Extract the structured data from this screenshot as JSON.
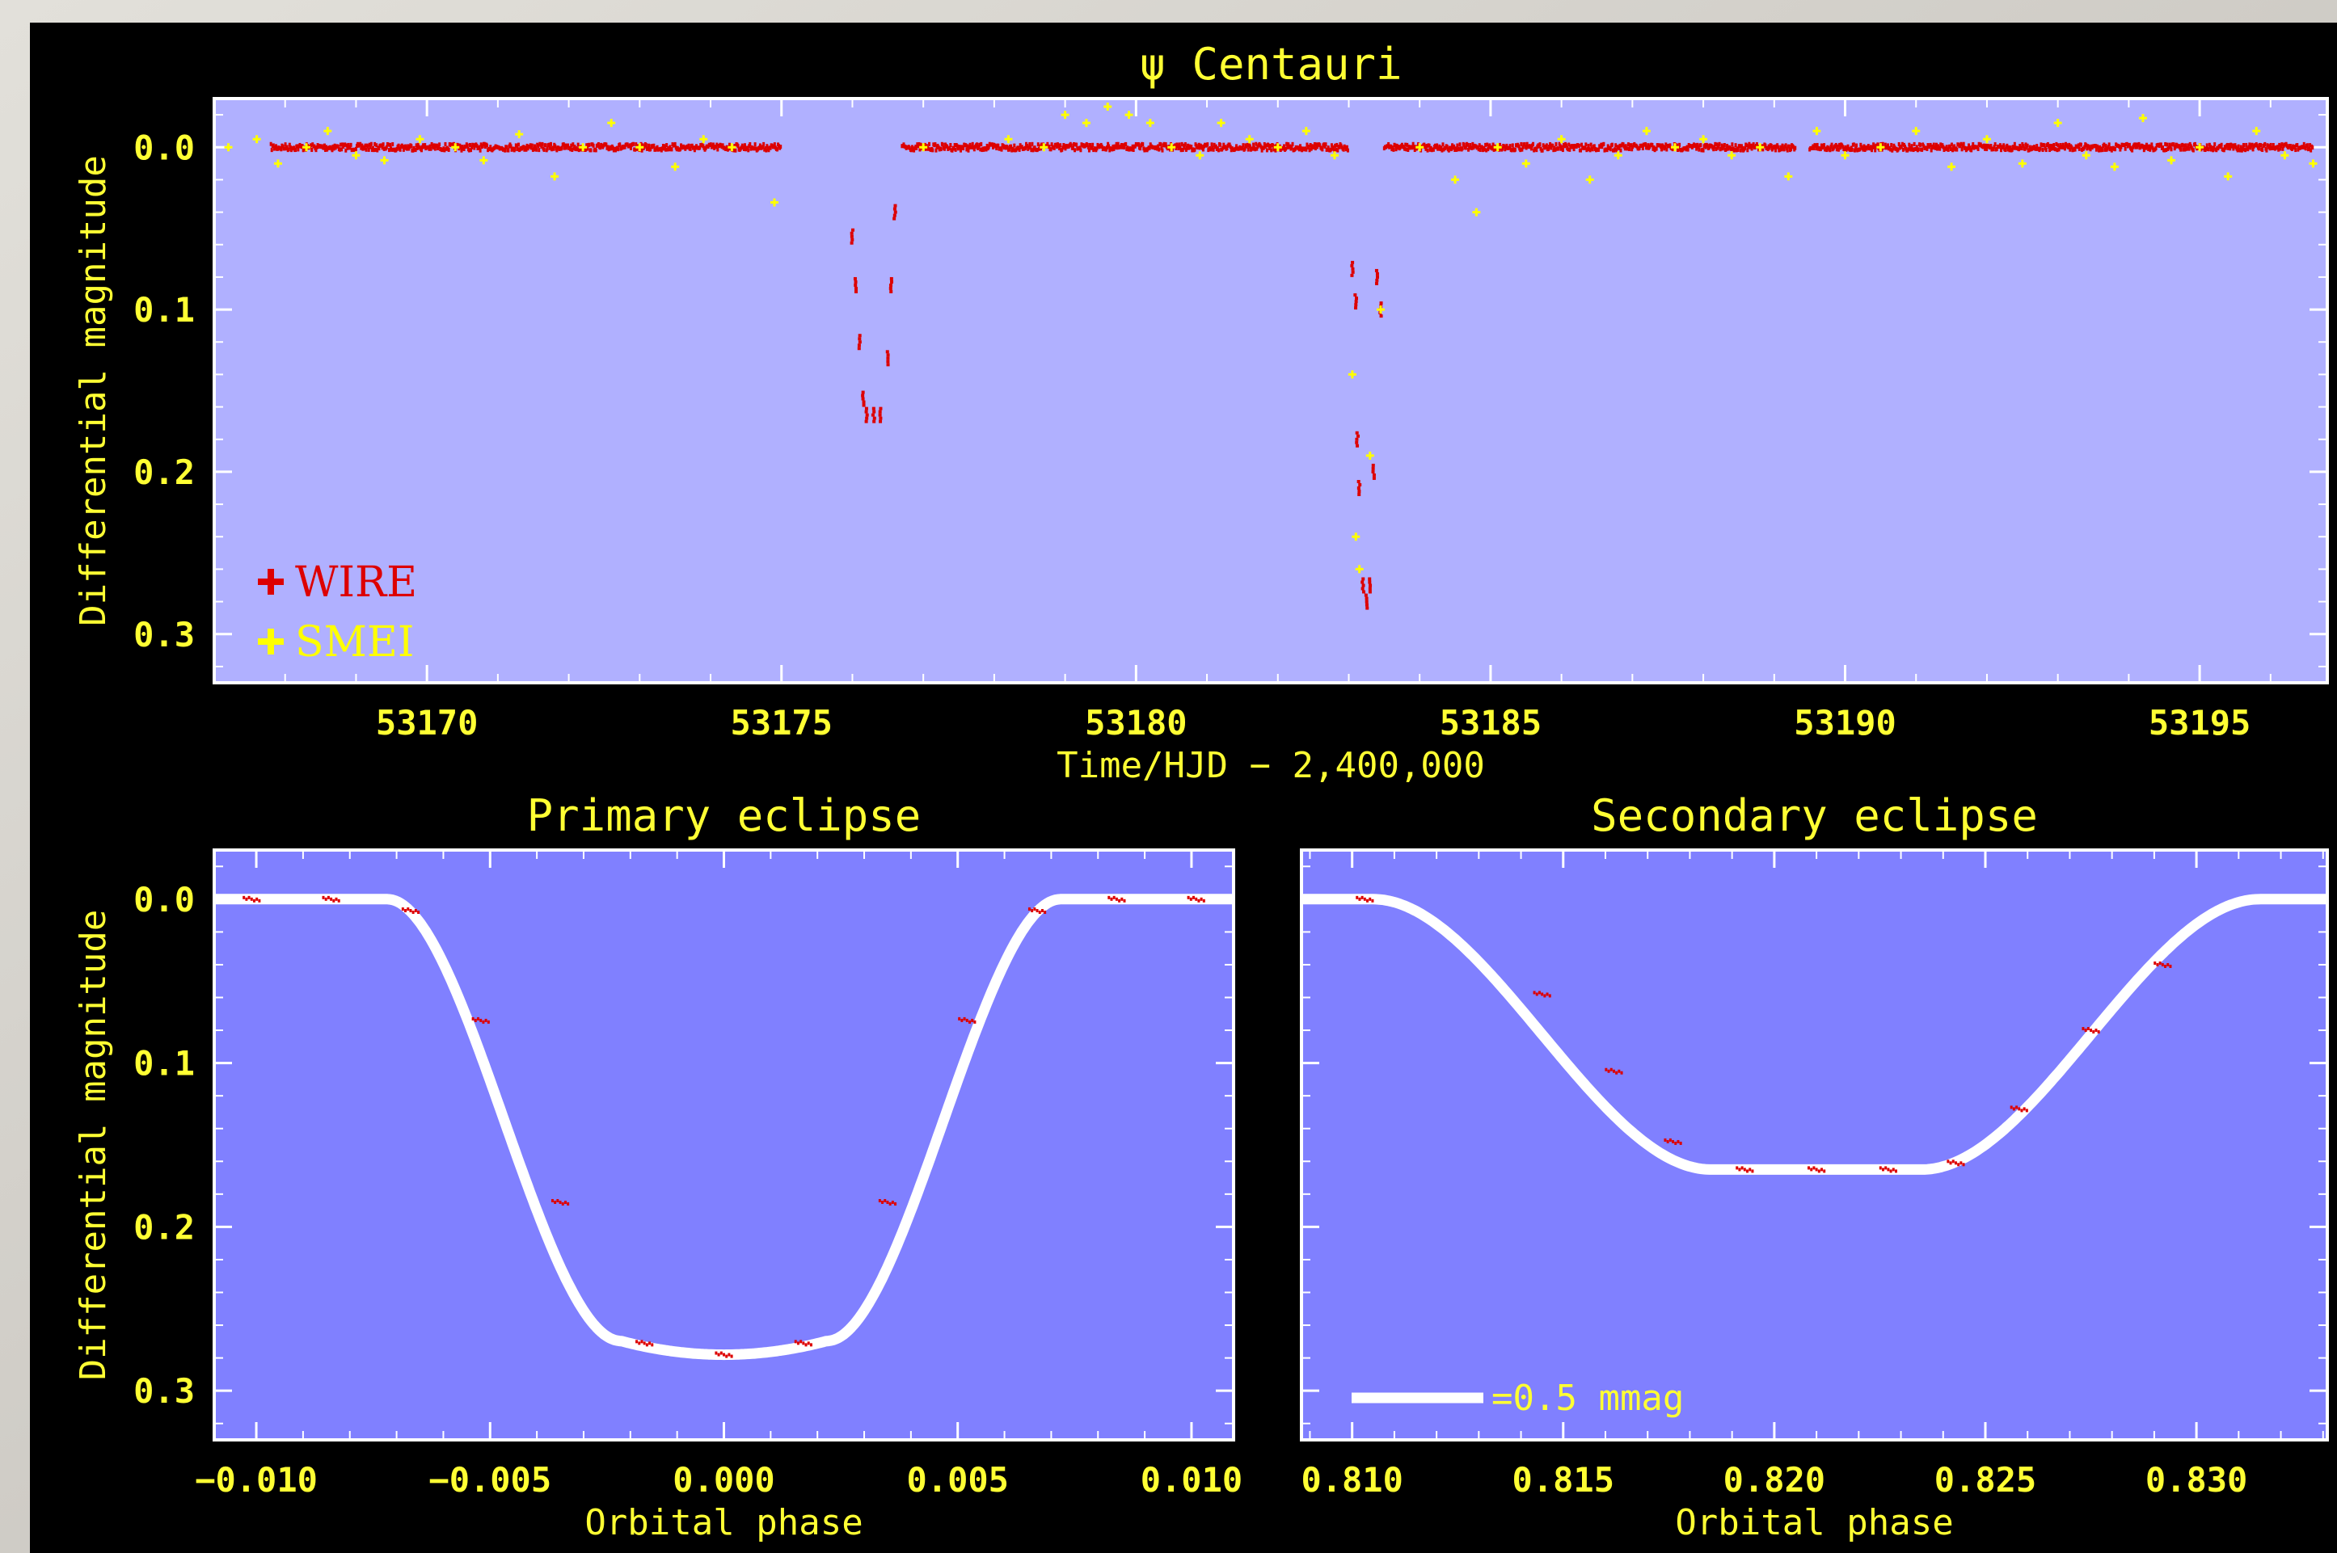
{
  "colors": {
    "figure_bg": "#000000",
    "top_panel_bg": "#b0b0ff",
    "bottom_panel_bg": "#8080ff",
    "text": "#ffff33",
    "wire": "#dd0000",
    "smei": "#ffff00",
    "model": "#ffffff"
  },
  "chart_data": [
    {
      "type": "scatter",
      "title": "ψ Centauri",
      "xlabel": "Time/HJD − 2,400,000",
      "ylabel": "Differential magnitude",
      "xlim": [
        53167.0,
        53196.8
      ],
      "ylim": [
        0.33,
        -0.03
      ],
      "y_inverted": true,
      "xticks": [
        53170,
        53175,
        53180,
        53185,
        53190,
        53195
      ],
      "xtick_labels": [
        "53170",
        "53175",
        "53180",
        "53185",
        "53190",
        "53195"
      ],
      "yticks": [
        0.0,
        0.1,
        0.2,
        0.3
      ],
      "ytick_labels": [
        "0.0",
        "0.1",
        "0.2",
        "0.3"
      ],
      "legend_position": "bottom-left",
      "legend": [
        {
          "symbol": "+",
          "label": "WIRE",
          "color": "#dd0000"
        },
        {
          "symbol": "+",
          "label": "SMEI",
          "color": "#ffff00"
        }
      ],
      "series": [
        {
          "name": "WIRE",
          "color": "#dd0000",
          "baseline_segments": [
            [
              53167.8,
              53175.0
            ],
            [
              53176.7,
              53183.0
            ],
            [
              53183.5,
              53189.3
            ],
            [
              53189.5,
              53196.6
            ]
          ],
          "baseline_mag": 0.0,
          "eclipse_points": [
            [
              53176.0,
              0.055
            ],
            [
              53176.05,
              0.085
            ],
            [
              53176.1,
              0.12
            ],
            [
              53176.15,
              0.155
            ],
            [
              53176.2,
              0.165
            ],
            [
              53176.3,
              0.165
            ],
            [
              53176.4,
              0.165
            ],
            [
              53176.5,
              0.13
            ],
            [
              53176.55,
              0.085
            ],
            [
              53176.6,
              0.04
            ],
            [
              53183.05,
              0.075
            ],
            [
              53183.1,
              0.095
            ],
            [
              53183.12,
              0.18
            ],
            [
              53183.15,
              0.21
            ],
            [
              53183.2,
              0.27
            ],
            [
              53183.25,
              0.28
            ],
            [
              53183.3,
              0.27
            ],
            [
              53183.35,
              0.2
            ],
            [
              53183.4,
              0.08
            ],
            [
              53183.45,
              0.1
            ]
          ]
        },
        {
          "name": "SMEI",
          "color": "#ffff00",
          "points": [
            [
              53167.2,
              0.0
            ],
            [
              53167.6,
              -0.005
            ],
            [
              53167.9,
              0.01
            ],
            [
              53168.3,
              0.0
            ],
            [
              53168.6,
              -0.01
            ],
            [
              53169.0,
              0.005
            ],
            [
              53169.4,
              0.008
            ],
            [
              53169.9,
              -0.005
            ],
            [
              53170.4,
              0.0
            ],
            [
              53170.8,
              0.008
            ],
            [
              53171.3,
              -0.008
            ],
            [
              53171.8,
              0.018
            ],
            [
              53172.2,
              0.0
            ],
            [
              53172.6,
              -0.015
            ],
            [
              53173.0,
              0.0
            ],
            [
              53173.5,
              0.012
            ],
            [
              53173.9,
              -0.005
            ],
            [
              53174.3,
              0.0
            ],
            [
              53174.9,
              0.034
            ],
            [
              53177.0,
              0.0
            ],
            [
              53178.2,
              -0.005
            ],
            [
              53178.7,
              0.0
            ],
            [
              53179.0,
              -0.02
            ],
            [
              53179.3,
              -0.015
            ],
            [
              53179.6,
              -0.025
            ],
            [
              53179.9,
              -0.02
            ],
            [
              53180.2,
              -0.015
            ],
            [
              53180.5,
              0.0
            ],
            [
              53180.9,
              0.005
            ],
            [
              53181.2,
              -0.015
            ],
            [
              53181.6,
              -0.005
            ],
            [
              53182.0,
              0.0
            ],
            [
              53182.4,
              -0.01
            ],
            [
              53182.8,
              0.005
            ],
            [
              53183.05,
              0.14
            ],
            [
              53183.1,
              0.24
            ],
            [
              53183.15,
              0.26
            ],
            [
              53183.3,
              0.19
            ],
            [
              53183.45,
              0.1
            ],
            [
              53184.0,
              0.0
            ],
            [
              53184.5,
              0.02
            ],
            [
              53184.8,
              0.04
            ],
            [
              53185.1,
              0.0
            ],
            [
              53185.5,
              0.01
            ],
            [
              53186.0,
              -0.005
            ],
            [
              53186.4,
              0.02
            ],
            [
              53186.8,
              0.005
            ],
            [
              53187.2,
              -0.01
            ],
            [
              53187.6,
              0.0
            ],
            [
              53188.0,
              -0.005
            ],
            [
              53188.4,
              0.005
            ],
            [
              53188.8,
              0.0
            ],
            [
              53189.2,
              0.018
            ],
            [
              53189.6,
              -0.01
            ],
            [
              53190.0,
              0.005
            ],
            [
              53190.5,
              0.0
            ],
            [
              53191.0,
              -0.01
            ],
            [
              53191.5,
              0.012
            ],
            [
              53192.0,
              -0.005
            ],
            [
              53192.5,
              0.01
            ],
            [
              53193.0,
              -0.015
            ],
            [
              53193.4,
              0.005
            ],
            [
              53193.8,
              0.012
            ],
            [
              53194.2,
              -0.018
            ],
            [
              53194.6,
              0.008
            ],
            [
              53195.0,
              0.0
            ],
            [
              53195.4,
              0.018
            ],
            [
              53195.8,
              -0.01
            ],
            [
              53196.2,
              0.005
            ],
            [
              53196.6,
              0.01
            ]
          ]
        }
      ]
    },
    {
      "type": "line",
      "title": "Primary eclipse",
      "xlabel": "Orbital phase",
      "ylabel": "Differential magnitude",
      "xlim": [
        -0.0109,
        0.0109
      ],
      "ylim": [
        0.33,
        -0.03
      ],
      "y_inverted": true,
      "xticks": [
        -0.01,
        -0.005,
        0.0,
        0.005,
        0.01
      ],
      "xtick_labels": [
        "−0.010",
        "−0.005",
        "0.000",
        "0.005",
        "0.010"
      ],
      "yticks": [
        0.0,
        0.1,
        0.2,
        0.3
      ],
      "ytick_labels": [
        "0.0",
        "0.1",
        "0.2",
        "0.3"
      ],
      "model": {
        "depth": 0.278,
        "contact_half_width": 0.0072,
        "flat_half_width": 0.0022
      },
      "wire_points": [
        [
          -0.0101,
          0.0
        ],
        [
          -0.0084,
          0.0
        ],
        [
          -0.0067,
          0.007
        ],
        [
          -0.0052,
          0.074
        ],
        [
          -0.0035,
          0.185
        ],
        [
          -0.0017,
          0.271
        ],
        [
          0.0,
          0.278
        ],
        [
          0.0017,
          0.271
        ],
        [
          0.0035,
          0.185
        ],
        [
          0.0052,
          0.074
        ],
        [
          0.0067,
          0.007
        ],
        [
          0.0084,
          0.0
        ],
        [
          0.0101,
          0.0
        ]
      ]
    },
    {
      "type": "line",
      "title": "Secondary eclipse",
      "xlabel": "Orbital phase",
      "ylabel": "",
      "xlim": [
        0.8088,
        0.8331
      ],
      "ylim": [
        0.33,
        -0.03
      ],
      "y_inverted": true,
      "xticks": [
        0.81,
        0.815,
        0.82,
        0.825,
        0.83
      ],
      "xtick_labels": [
        "0.810",
        "0.815",
        "0.820",
        "0.825",
        "0.830"
      ],
      "yticks": [
        0.0,
        0.1,
        0.2,
        0.3
      ],
      "ytick_labels": [],
      "model": {
        "depth": 0.165,
        "first_contact": 0.8105,
        "second_contact": 0.8185,
        "third_contact": 0.8235,
        "fourth_contact": 0.8315
      },
      "wire_points": [
        [
          0.8103,
          0.0
        ],
        [
          0.8145,
          0.058
        ],
        [
          0.8162,
          0.105
        ],
        [
          0.8176,
          0.148
        ],
        [
          0.8193,
          0.165
        ],
        [
          0.821,
          0.165
        ],
        [
          0.8227,
          0.165
        ],
        [
          0.8243,
          0.161
        ],
        [
          0.8258,
          0.128
        ],
        [
          0.8275,
          0.08
        ],
        [
          0.8292,
          0.04
        ]
      ],
      "annotation": {
        "text": "=0.5 mmag",
        "symbol": "white-thick-line",
        "position": "bottom-left"
      }
    }
  ]
}
